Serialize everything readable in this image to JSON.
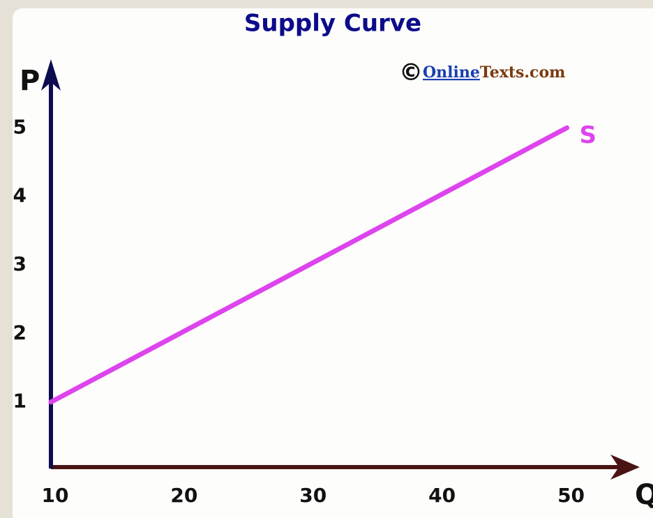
{
  "chart_data": {
    "type": "line",
    "title": "Supply Curve",
    "credit": {
      "symbol": "©",
      "link": "Online",
      "rest": "Texts.com"
    },
    "xlabel": "Q",
    "ylabel": "P",
    "x": [
      10,
      20,
      30,
      40,
      50
    ],
    "series": [
      {
        "name": "S",
        "color": "#dd44ee",
        "values": [
          1,
          2,
          3,
          4,
          5
        ]
      }
    ],
    "xlim": [
      10,
      55
    ],
    "xticks": [
      10,
      20,
      30,
      40,
      50
    ],
    "ylim": [
      0,
      6
    ],
    "yticks": [
      1,
      2,
      3,
      4,
      5
    ],
    "grid": false
  }
}
